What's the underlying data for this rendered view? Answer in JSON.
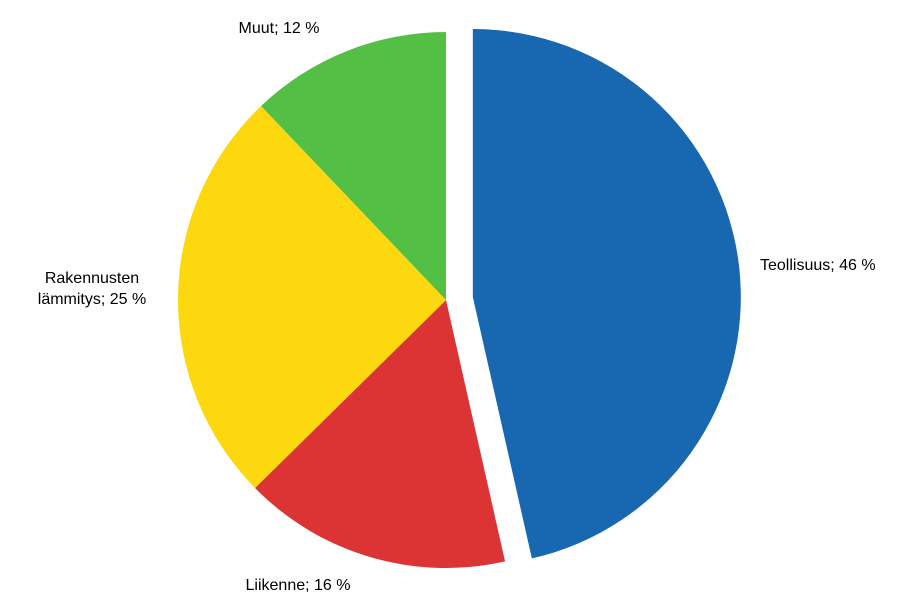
{
  "chart_data": {
    "type": "pie",
    "title": "",
    "slices": [
      {
        "label": [
          "Teollisuus; 46 %"
        ],
        "value": 46,
        "color": "#1767b1",
        "exploded": true
      },
      {
        "label": [
          "Liikenne; 16 %"
        ],
        "value": 16,
        "color": "#dc3335",
        "exploded": false
      },
      {
        "label": [
          "Rakennusten",
          "lämmitys; 25 %"
        ],
        "value": 25,
        "color": "#fdd80e",
        "exploded": false
      },
      {
        "label": [
          "Muut; 12 %"
        ],
        "value": 12,
        "color": "#54bf45",
        "exploded": false
      }
    ]
  }
}
